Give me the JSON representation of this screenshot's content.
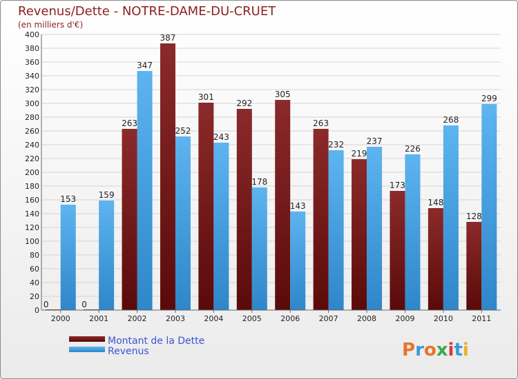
{
  "chart_data": {
    "type": "bar",
    "title": "Revenus/Dette - NOTRE-DAME-DU-CRUET",
    "subtitle": "(en milliers d'€)",
    "categories": [
      "2000",
      "2001",
      "2002",
      "2003",
      "2004",
      "2005",
      "2006",
      "2007",
      "2008",
      "2009",
      "2010",
      "2011"
    ],
    "series": [
      {
        "name": "Montant de la Dette",
        "color": "#7a1414",
        "values": [
          0,
          0,
          263,
          387,
          301,
          292,
          305,
          263,
          219,
          173,
          148,
          128
        ]
      },
      {
        "name": "Revenus",
        "color": "#4aa3e8",
        "values": [
          153,
          159,
          347,
          252,
          243,
          178,
          143,
          232,
          237,
          226,
          268,
          299
        ]
      }
    ],
    "ylim": [
      0,
      400
    ],
    "ytick_step": 20,
    "grid": true,
    "legend_position": "bottom-left"
  },
  "logo": {
    "letters": [
      "P",
      "r",
      "o",
      "x",
      "i",
      "t",
      "i"
    ],
    "colors": [
      "#e8742a",
      "#3a9ad9",
      "#e8742a",
      "#3aa84a",
      "#d43a3a",
      "#3a9ad9",
      "#e8b02a"
    ]
  }
}
